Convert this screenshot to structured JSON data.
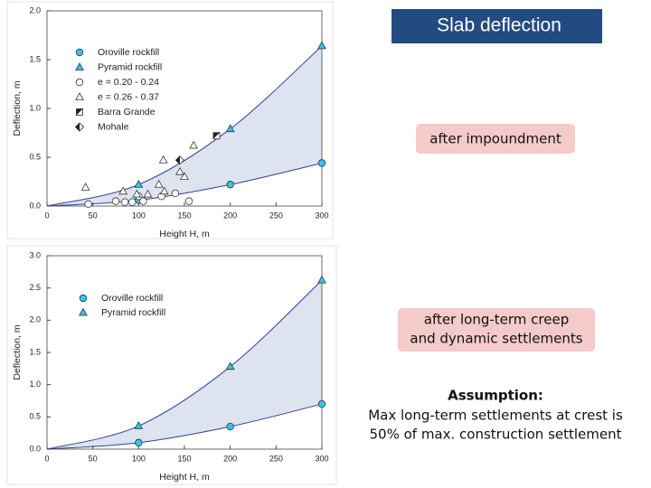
{
  "slide": {
    "title": "Slab deflection",
    "box1": [
      "after impoundment"
    ],
    "box2": [
      "after long-term creep",
      "and dynamic settlements"
    ],
    "assumption": {
      "heading": "Assumption:",
      "lines": [
        "Max long-term settlements at crest is",
        "50% of max. construction settlement"
      ]
    }
  },
  "chart_data": [
    {
      "type": "scatter",
      "x_label": "Height H, m",
      "y_label": "Deflection, m",
      "xlim": [
        0,
        300
      ],
      "xticks": [
        0,
        50,
        100,
        150,
        200,
        250,
        300
      ],
      "ylim": [
        0,
        2
      ],
      "yticks": [
        {
          "value": 0,
          "label": "0.0"
        },
        {
          "value": 0.5,
          "label": "0.5"
        },
        {
          "value": 1,
          "label": "1.0"
        },
        {
          "value": 1.5,
          "label": "1.5"
        },
        {
          "value": 2,
          "label": "2.0"
        }
      ],
      "band": true,
      "series": [
        {
          "name": "Oroville rockfill",
          "color": "#33c6ea",
          "marker": "circle",
          "filled": true,
          "x": [
            100,
            200,
            300
          ],
          "values": [
            0.06,
            0.22,
            0.44
          ]
        },
        {
          "name": "Pyramid rockfill",
          "color": "#33c6ea",
          "marker": "triangle",
          "filled": true,
          "x": [
            100,
            200,
            300
          ],
          "values": [
            0.22,
            0.79,
            1.64
          ]
        },
        {
          "name": "e = 0.20 - 0.24",
          "color": "#333333",
          "marker": "circle",
          "filled": false,
          "x": [
            45,
            75,
            85,
            93,
            100,
            105,
            125,
            140,
            155
          ],
          "values": [
            0.02,
            0.05,
            0.04,
            0.04,
            0.1,
            0.05,
            0.1,
            0.13,
            0.05
          ]
        },
        {
          "name": "e = 0.26 - 0.37",
          "color": "#333333",
          "marker": "triangle",
          "filled": false,
          "x": [
            42,
            83,
            98,
            110,
            122,
            127,
            128,
            145,
            150,
            160
          ],
          "values": [
            0.19,
            0.15,
            0.12,
            0.12,
            0.22,
            0.47,
            0.15,
            0.35,
            0.3,
            0.62
          ]
        },
        {
          "name": "Barra Grande",
          "color": "#222222",
          "marker": "square-half",
          "filled": true,
          "x": [
            185
          ],
          "values": [
            0.72
          ]
        },
        {
          "name": "Mohale",
          "color": "#222222",
          "marker": "diamond-half",
          "filled": true,
          "x": [
            145
          ],
          "values": [
            0.47
          ]
        }
      ]
    },
    {
      "type": "scatter",
      "x_label": "Height H, m",
      "y_label": "Deflection, m",
      "xlim": [
        0,
        300
      ],
      "xticks": [
        0,
        50,
        100,
        150,
        200,
        250,
        300
      ],
      "ylim": [
        0,
        3
      ],
      "yticks": [
        {
          "value": 0,
          "label": "0.0"
        },
        {
          "value": 0.5,
          "label": "0.5"
        },
        {
          "value": 1,
          "label": "1.0"
        },
        {
          "value": 1.5,
          "label": "1.5"
        },
        {
          "value": 2,
          "label": "2.0"
        },
        {
          "value": 2.5,
          "label": "2.5"
        },
        {
          "value": 3,
          "label": "3.0"
        }
      ],
      "band": true,
      "series": [
        {
          "name": "Oroville rockfill",
          "color": "#33c6ea",
          "marker": "circle",
          "filled": true,
          "x": [
            100,
            200,
            300
          ],
          "values": [
            0.1,
            0.35,
            0.7
          ]
        },
        {
          "name": "Pyramid rockfill",
          "color": "#33c6ea",
          "marker": "triangle",
          "filled": true,
          "x": [
            100,
            200,
            300
          ],
          "values": [
            0.36,
            1.28,
            2.62
          ]
        }
      ]
    }
  ]
}
